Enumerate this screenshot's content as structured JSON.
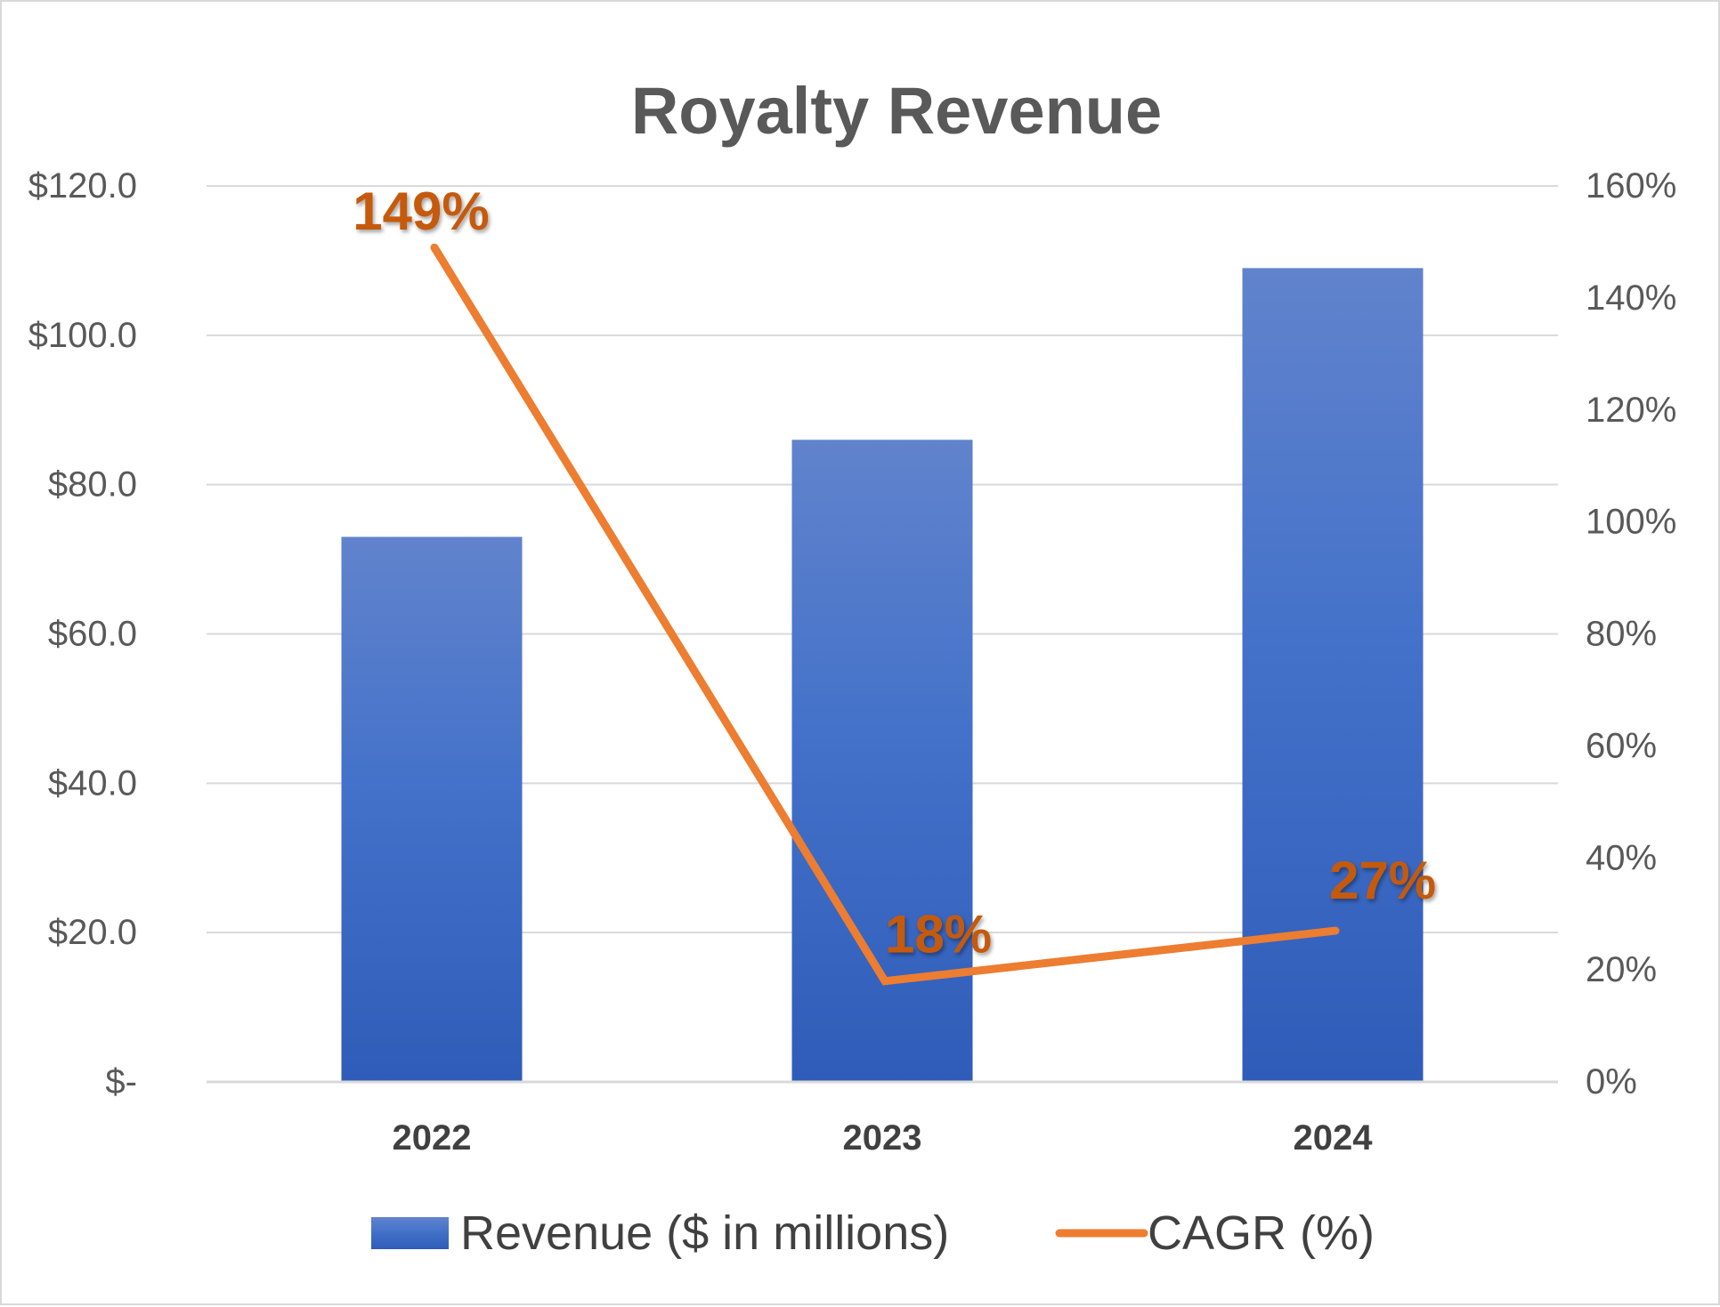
{
  "chart_data": {
    "type": "bar",
    "title": "Royalty Revenue",
    "categories": [
      "2022",
      "2023",
      "2024"
    ],
    "series": [
      {
        "name": "Revenue ($ in millions)",
        "type": "bar",
        "axis": "left",
        "values": [
          73,
          86,
          109
        ],
        "color": "#4472C4"
      },
      {
        "name": "CAGR (%)",
        "type": "line",
        "axis": "right",
        "values": [
          149,
          18,
          27
        ],
        "data_labels": [
          "149%",
          "18%",
          "27%"
        ],
        "color": "#ED7D31",
        "label_color": "#C55A11"
      }
    ],
    "y_left": {
      "range": [
        0,
        120
      ],
      "ticks": [
        0,
        20,
        40,
        60,
        80,
        100,
        120
      ],
      "tick_labels": [
        "$-",
        "$20.0",
        "$40.0",
        "$60.0",
        "$80.0",
        "$100.0",
        "$120.0"
      ]
    },
    "y_right": {
      "range": [
        0,
        160
      ],
      "ticks": [
        0,
        20,
        40,
        60,
        80,
        100,
        120,
        140,
        160
      ],
      "tick_labels": [
        "0%",
        "20%",
        "40%",
        "60%",
        "80%",
        "100%",
        "120%",
        "140%",
        "160%"
      ]
    },
    "grid": "horizontal",
    "legend_position": "bottom"
  }
}
